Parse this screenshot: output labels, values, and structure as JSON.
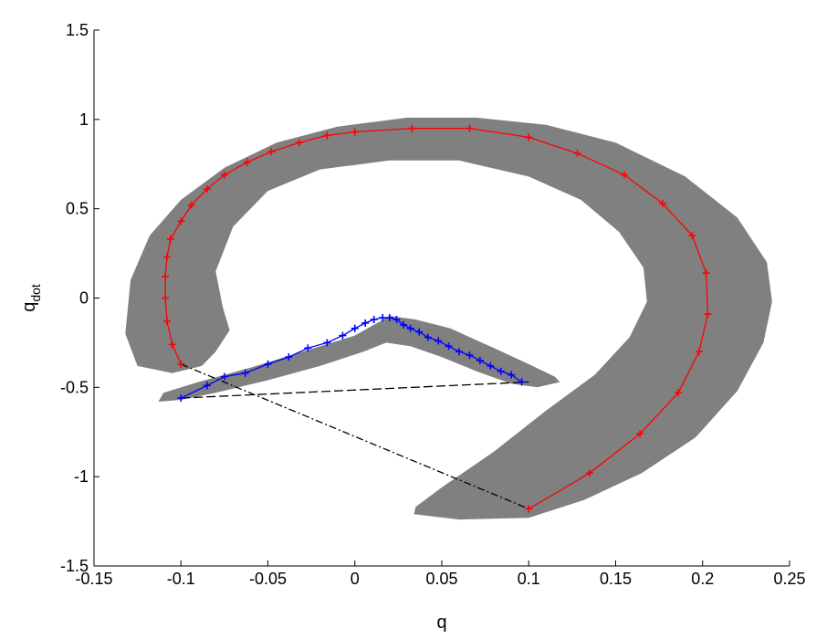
{
  "chart_data": {
    "type": "line",
    "title": "",
    "xlabel": "q",
    "ylabel_base": "q",
    "ylabel_sub": "dot",
    "xlim": [
      -0.15,
      0.25
    ],
    "ylim": [
      -1.5,
      1.5
    ],
    "grid": false,
    "xticks": [
      -0.15,
      -0.1,
      -0.05,
      0,
      0.05,
      0.1,
      0.15,
      0.2,
      0.25
    ],
    "xtick_labels": [
      "-0.15",
      "-0.1",
      "-0.05",
      "0",
      "0.05",
      "0.1",
      "0.15",
      "0.2",
      "0.25"
    ],
    "yticks": [
      -1.5,
      -1,
      -0.5,
      0,
      0.5,
      1,
      1.5
    ],
    "ytick_labels": [
      "-1.5",
      "-1",
      "-0.5",
      "0",
      "0.5",
      "1",
      "1.5"
    ],
    "colors": {
      "band": "#808080",
      "red_series": "#ff0000",
      "blue_series": "#0000ff",
      "connector": "#000000"
    },
    "bands": [
      {
        "polygon": [
          [
            -0.105,
            -0.42
          ],
          [
            -0.125,
            -0.38
          ],
          [
            -0.132,
            -0.2
          ],
          [
            -0.129,
            0.1
          ],
          [
            -0.118,
            0.35
          ],
          [
            -0.1,
            0.55
          ],
          [
            -0.075,
            0.73
          ],
          [
            -0.045,
            0.87
          ],
          [
            -0.01,
            0.96
          ],
          [
            0.03,
            1.01
          ],
          [
            0.07,
            1.01
          ],
          [
            0.11,
            0.97
          ],
          [
            0.15,
            0.87
          ],
          [
            0.19,
            0.68
          ],
          [
            0.22,
            0.45
          ],
          [
            0.237,
            0.2
          ],
          [
            0.24,
            -0.02
          ],
          [
            0.235,
            -0.25
          ],
          [
            0.22,
            -0.52
          ],
          [
            0.196,
            -0.78
          ],
          [
            0.165,
            -0.98
          ],
          [
            0.132,
            -1.13
          ],
          [
            0.1,
            -1.23
          ],
          [
            0.06,
            -1.24
          ],
          [
            0.034,
            -1.21
          ],
          [
            0.035,
            -1.17
          ],
          [
            0.05,
            -1.06
          ],
          [
            0.08,
            -0.86
          ],
          [
            0.11,
            -0.63
          ],
          [
            0.138,
            -0.43
          ],
          [
            0.158,
            -0.22
          ],
          [
            0.168,
            -0.02
          ],
          [
            0.166,
            0.17
          ],
          [
            0.152,
            0.37
          ],
          [
            0.13,
            0.55
          ],
          [
            0.1,
            0.68
          ],
          [
            0.06,
            0.77
          ],
          [
            0.02,
            0.77
          ],
          [
            -0.02,
            0.72
          ],
          [
            -0.05,
            0.6
          ],
          [
            -0.07,
            0.4
          ],
          [
            -0.08,
            0.15
          ],
          [
            -0.076,
            -0.05
          ],
          [
            -0.072,
            -0.18
          ],
          [
            -0.08,
            -0.3
          ],
          [
            -0.088,
            -0.38
          ],
          [
            -0.105,
            -0.42
          ]
        ]
      },
      {
        "polygon": [
          [
            -0.113,
            -0.58
          ],
          [
            -0.11,
            -0.53
          ],
          [
            -0.09,
            -0.47
          ],
          [
            -0.06,
            -0.39
          ],
          [
            -0.03,
            -0.3
          ],
          [
            0,
            -0.21
          ],
          [
            0.02,
            -0.1
          ],
          [
            0.035,
            -0.12
          ],
          [
            0.055,
            -0.17
          ],
          [
            0.08,
            -0.28
          ],
          [
            0.1,
            -0.37
          ],
          [
            0.115,
            -0.44
          ],
          [
            0.118,
            -0.47
          ],
          [
            0.105,
            -0.5
          ],
          [
            0.09,
            -0.48
          ],
          [
            0.07,
            -0.41
          ],
          [
            0.05,
            -0.33
          ],
          [
            0.032,
            -0.27
          ],
          [
            0.018,
            -0.25
          ],
          [
            0.005,
            -0.3
          ],
          [
            -0.02,
            -0.38
          ],
          [
            -0.05,
            -0.46
          ],
          [
            -0.08,
            -0.53
          ],
          [
            -0.1,
            -0.57
          ],
          [
            -0.113,
            -0.58
          ]
        ]
      }
    ],
    "series": [
      {
        "color": "#ff0000",
        "marker": "+",
        "x": [
          -0.1,
          -0.105,
          -0.108,
          -0.109,
          -0.109,
          -0.108,
          -0.106,
          -0.1,
          -0.094,
          -0.085,
          -0.075,
          -0.062,
          -0.048,
          -0.032,
          -0.016,
          0,
          0.033,
          0.066,
          0.1,
          0.128,
          0.155,
          0.177,
          0.194,
          0.202,
          0.203,
          0.198,
          0.186,
          0.164,
          0.135,
          0.1
        ],
        "y": [
          -0.37,
          -0.26,
          -0.13,
          0,
          0.12,
          0.23,
          0.33,
          0.43,
          0.52,
          0.61,
          0.69,
          0.76,
          0.82,
          0.87,
          0.91,
          0.93,
          0.95,
          0.95,
          0.9,
          0.81,
          0.69,
          0.53,
          0.35,
          0.14,
          -0.09,
          -0.3,
          -0.53,
          -0.76,
          -0.98,
          -1.18
        ]
      },
      {
        "color": "#0000ff",
        "marker": "+",
        "x": [
          -0.1,
          -0.085,
          -0.075,
          -0.063,
          -0.05,
          -0.038,
          -0.027,
          -0.016,
          -0.007,
          0,
          0.006,
          0.011,
          0.016,
          0.02,
          0.024,
          0.028,
          0.032,
          0.037,
          0.042,
          0.048,
          0.054,
          0.06,
          0.066,
          0.072,
          0.078,
          0.084,
          0.09,
          0.096
        ],
        "y": [
          -0.56,
          -0.49,
          -0.44,
          -0.42,
          -0.37,
          -0.33,
          -0.28,
          -0.25,
          -0.21,
          -0.17,
          -0.14,
          -0.12,
          -0.11,
          -0.11,
          -0.12,
          -0.15,
          -0.17,
          -0.19,
          -0.22,
          -0.24,
          -0.27,
          -0.3,
          -0.32,
          -0.35,
          -0.38,
          -0.41,
          -0.43,
          -0.47
        ]
      }
    ],
    "connectors": [
      {
        "style": "dash-dot",
        "x": [
          -0.1,
          0.1
        ],
        "y": [
          -0.37,
          -1.18
        ]
      },
      {
        "style": "dashed",
        "x": [
          -0.1,
          0.1
        ],
        "y": [
          -0.56,
          -0.47
        ]
      }
    ]
  }
}
